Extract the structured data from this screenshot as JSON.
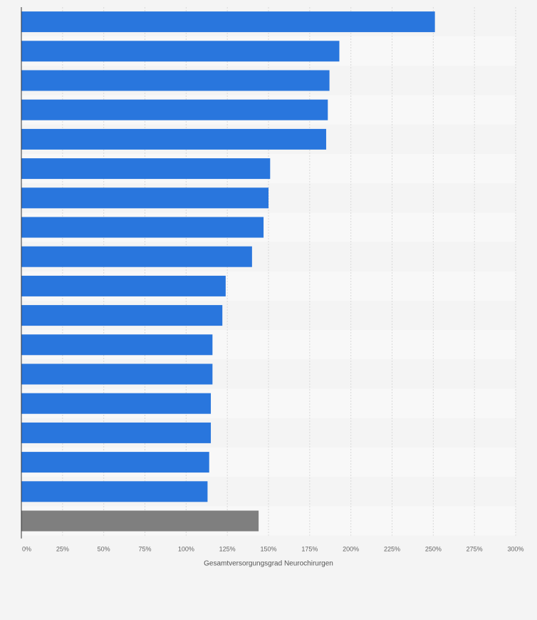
{
  "chart_data": {
    "type": "bar",
    "orientation": "horizontal",
    "categories": [
      "",
      "",
      "",
      "",
      "",
      "",
      "",
      "",
      "",
      "",
      "",
      "",
      "",
      "",
      "",
      "",
      "",
      ""
    ],
    "values": [
      251,
      193,
      187,
      186,
      185,
      151,
      150,
      147,
      140,
      124,
      122,
      116,
      116,
      115,
      115,
      114,
      113,
      144
    ],
    "highlight_last": true,
    "xlim": [
      0,
      300
    ],
    "x_ticks": [
      "0%",
      "25%",
      "50%",
      "75%",
      "100%",
      "125%",
      "150%",
      "175%",
      "200%",
      "225%",
      "250%",
      "275%",
      "300%"
    ],
    "x_tick_values": [
      0,
      25,
      50,
      75,
      100,
      125,
      150,
      175,
      200,
      225,
      250,
      275,
      300
    ],
    "xlabel": "Gesamtversorgungsgrad Neurochirurgen",
    "ylabel": "",
    "title": "",
    "grid": true,
    "colors": {
      "bar": "#2976dd",
      "highlight": "#7f7f7f",
      "grid": "#d9d9d9",
      "axis": "#333333",
      "row_even": "#f4f4f4",
      "row_odd": "#f8f8f8"
    }
  }
}
